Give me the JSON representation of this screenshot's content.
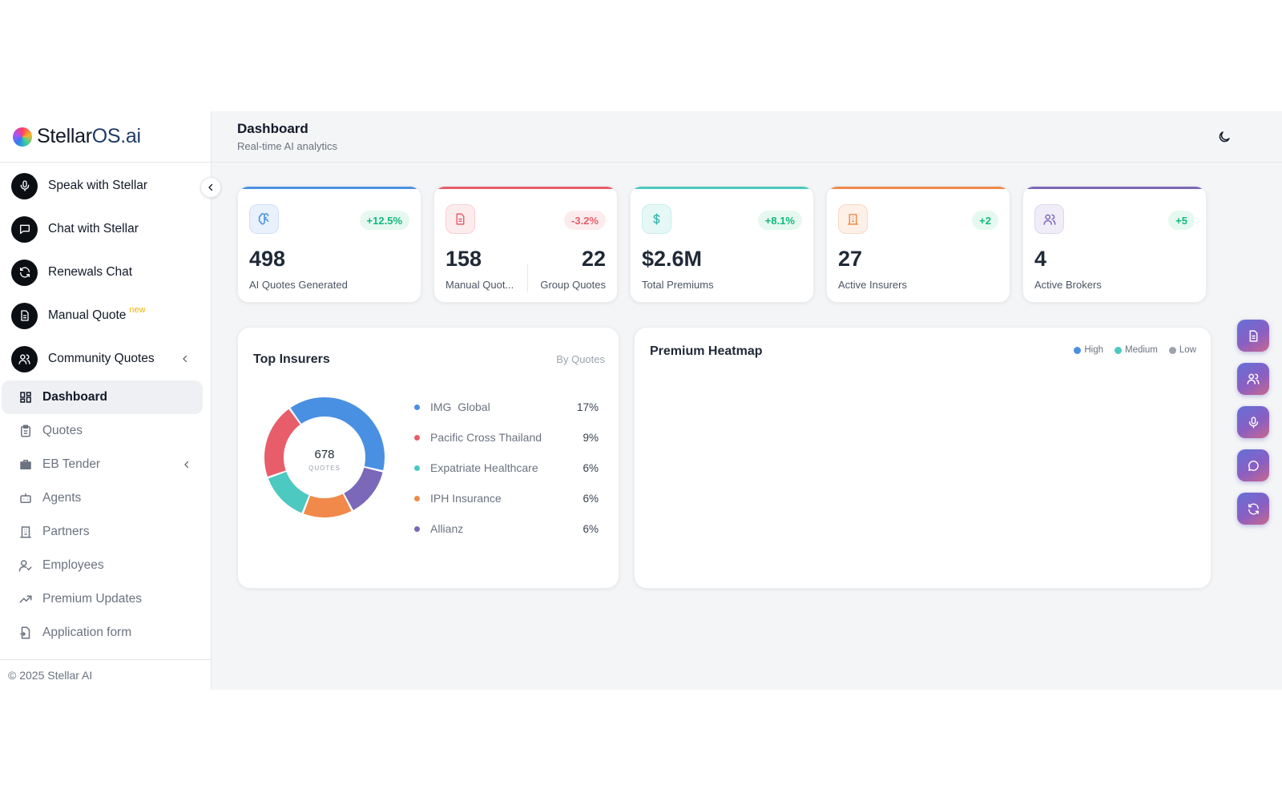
{
  "brand": {
    "name": "Stellar",
    "suffix": "OS.ai"
  },
  "sidebar": {
    "primary": [
      {
        "label": "Speak with Stellar",
        "icon": "mic-icon"
      },
      {
        "label": "Chat with Stellar",
        "icon": "chat-icon"
      },
      {
        "label": "Renewals Chat",
        "icon": "refresh-icon"
      },
      {
        "label": "Manual Quote",
        "icon": "document-icon",
        "badge": "new"
      },
      {
        "label": "Community Quotes",
        "icon": "users-icon"
      }
    ],
    "sub": [
      {
        "label": "Dashboard",
        "icon": "grid-icon",
        "active": true
      },
      {
        "label": "Quotes",
        "icon": "clipboard-icon"
      },
      {
        "label": "EB Tender",
        "icon": "briefcase-icon"
      },
      {
        "label": "Agents",
        "icon": "bot-icon"
      },
      {
        "label": "Partners",
        "icon": "building-icon"
      },
      {
        "label": "Employees",
        "icon": "user-check-icon"
      },
      {
        "label": "Premium Updates",
        "icon": "trending-up-icon"
      },
      {
        "label": "Application form",
        "icon": "form-icon"
      }
    ],
    "footer": "© 2025 Stellar AI"
  },
  "header": {
    "title": "Dashboard",
    "subtitle": "Real-time AI analytics"
  },
  "stats": [
    {
      "value": "498",
      "label": "AI Quotes Generated",
      "change": "+12.5%",
      "accent": "#4a90e2",
      "trend": "up"
    },
    {
      "value": "158",
      "label": "Manual Quot...",
      "value2": "22",
      "label2": "Group Quotes",
      "change": "-3.2%",
      "accent": "#e85d6a",
      "trend": "down"
    },
    {
      "value": "$2.6M",
      "label": "Total Premiums",
      "change": "+8.1%",
      "accent": "#4cc9c0",
      "trend": "up"
    },
    {
      "value": "27",
      "label": "Active Insurers",
      "change": "+2",
      "accent": "#f0894a",
      "trend": "up"
    },
    {
      "value": "4",
      "label": "Active Brokers",
      "change": "+5",
      "accent": "#7b68b8",
      "trend": "up"
    }
  ],
  "insurers": {
    "title": "Top Insurers",
    "sort": "By Quotes",
    "total": "678",
    "total_label": "QUOTES"
  },
  "heatmap": {
    "title": "Premium Heatmap",
    "legend": [
      {
        "label": "High",
        "color": "#4a90e2"
      },
      {
        "label": "Medium",
        "color": "#4cc9c0"
      },
      {
        "label": "Low",
        "color": "#9ca3af"
      }
    ]
  },
  "quick_actions": [
    "document-icon",
    "users-icon",
    "mic-icon",
    "chat-icon",
    "refresh-icon"
  ],
  "chart_data": {
    "type": "pie",
    "title": "Top Insurers",
    "categories": [
      "IMG  Global",
      "Pacific Cross Thailand",
      "Expatriate Healthcare",
      "IPH Insurance",
      "Allianz"
    ],
    "labels": [
      "17%",
      "9%",
      "6%",
      "6%",
      "6%"
    ],
    "values": [
      17,
      9,
      6,
      6,
      6
    ],
    "colors": [
      "#4a90e2",
      "#e85d6a",
      "#4cc9c0",
      "#f0894a",
      "#7b68b8"
    ],
    "donut_segments": [
      {
        "name": "IMG  Global",
        "value": 38.6,
        "color": "#4a90e2"
      },
      {
        "name": "Allianz",
        "value": 13.6,
        "color": "#7b68b8"
      },
      {
        "name": "IPH Insurance",
        "value": 13.6,
        "color": "#f0894a"
      },
      {
        "name": "Expatriate Healthcare",
        "value": 13.6,
        "color": "#4cc9c0"
      },
      {
        "name": "Pacific Cross Thailand",
        "value": 20.6,
        "color": "#e85d6a"
      }
    ],
    "legend": "right"
  }
}
